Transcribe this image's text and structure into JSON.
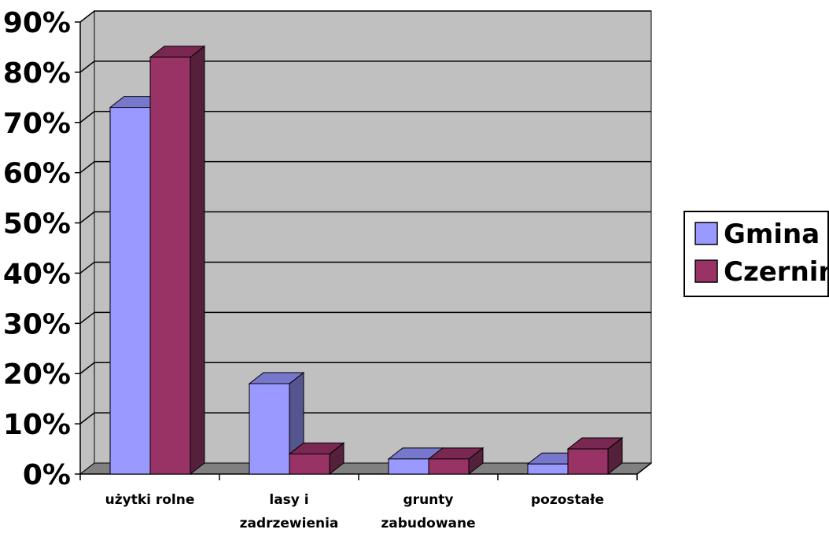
{
  "chart_data": {
    "type": "bar",
    "title": "",
    "xlabel": "",
    "ylabel": "",
    "categories": [
      [
        "użytki rolne"
      ],
      [
        "lasy i",
        "zadrzewienia"
      ],
      [
        "grunty",
        "zabudowane"
      ],
      [
        "pozostałe"
      ]
    ],
    "series": [
      {
        "name": "Gmina",
        "values": [
          73,
          18,
          3,
          2
        ]
      },
      {
        "name": "Czernin",
        "values": [
          83,
          4,
          3,
          5
        ]
      }
    ],
    "ylim": [
      0,
      90
    ],
    "yticks": [
      "0%",
      "10%",
      "20%",
      "30%",
      "40%",
      "50%",
      "60%",
      "70%",
      "80%",
      "90%"
    ],
    "grid": true,
    "legend_position": "right",
    "three_d": true,
    "colors": {
      "series": [
        "#9999ff",
        "#993366"
      ],
      "series_side": [
        "#55558f",
        "#55203a"
      ],
      "series_top": [
        "#7777cc",
        "#7a2852"
      ],
      "back_wall": "#c0c0c0",
      "side_wall": "#c0c0c0",
      "floor": "#808080",
      "gridline": "#000000"
    }
  }
}
